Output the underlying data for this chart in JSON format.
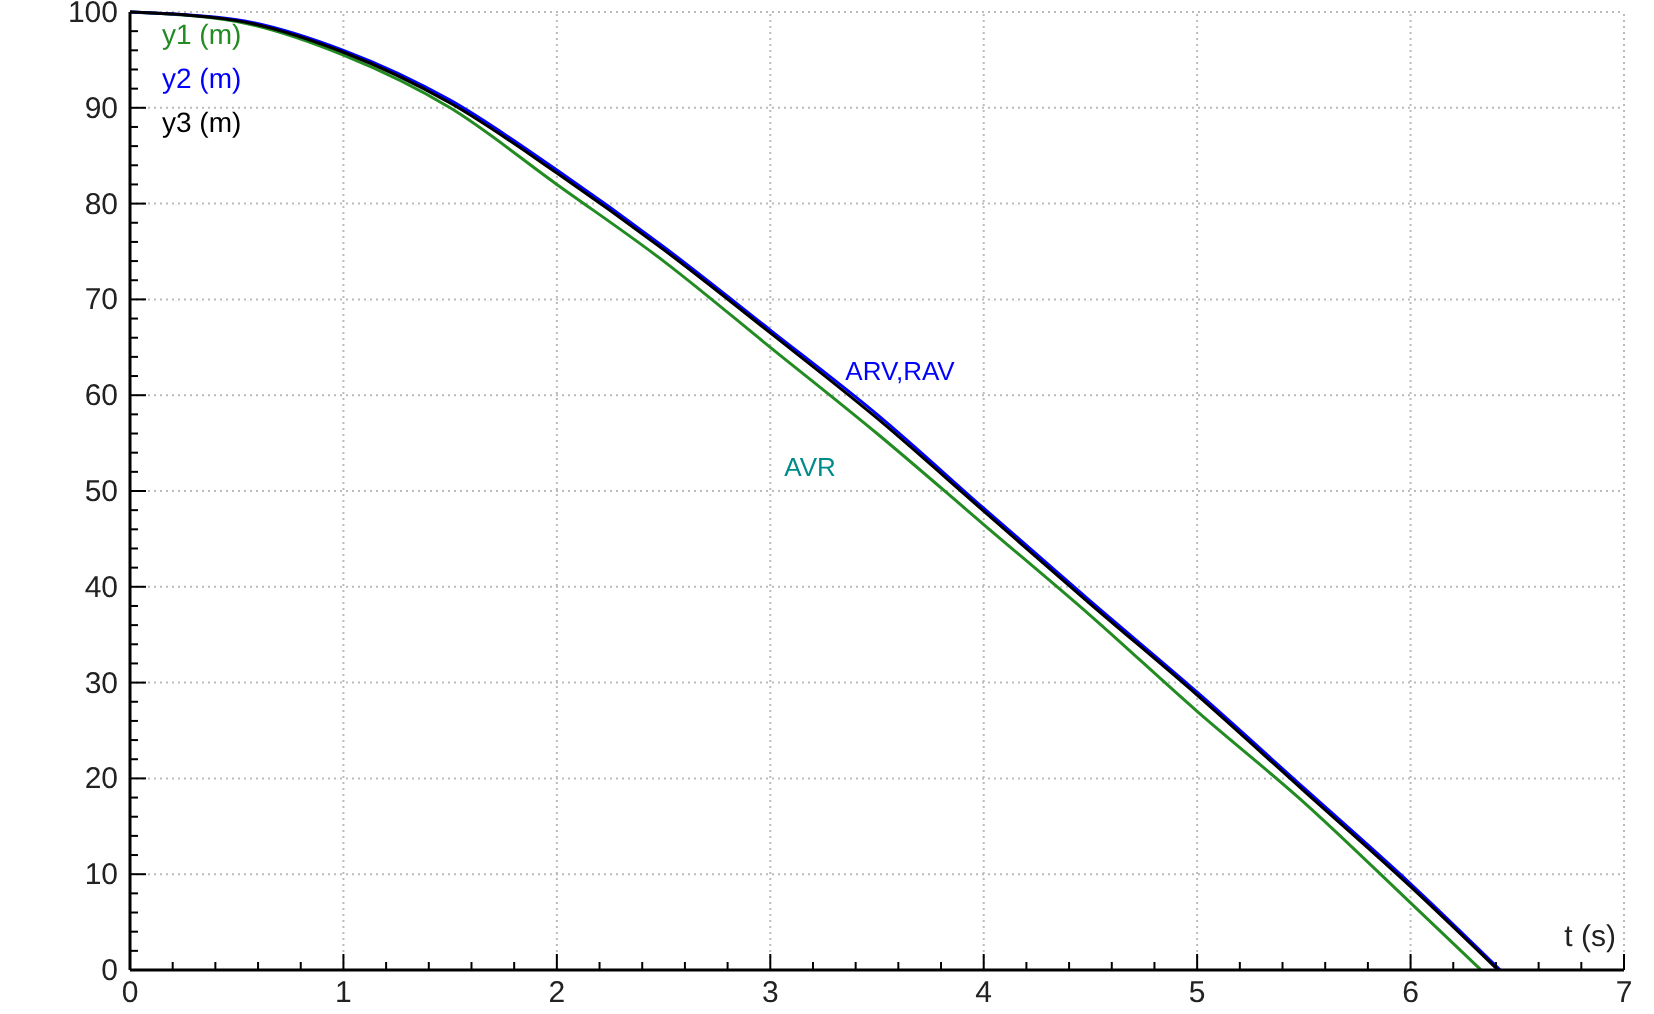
{
  "chart_data": {
    "type": "line",
    "xlabel": "t (s)",
    "xlim": [
      0,
      7
    ],
    "xticks": [
      0,
      1,
      2,
      3,
      4,
      5,
      6,
      7
    ],
    "ylim": [
      0,
      100
    ],
    "yticks": [
      0,
      10,
      20,
      30,
      40,
      50,
      60,
      70,
      80,
      90,
      100
    ],
    "grid": true,
    "legend": "top left",
    "marker": "none",
    "line_style": "solid",
    "annotations": [
      "ARV,RAV",
      "AVR"
    ],
    "series": [
      {
        "name": "y1 (m)",
        "color": "#228b22",
        "x": [
          0,
          0.5,
          1,
          1.5,
          2,
          2.5,
          3,
          3.5,
          4,
          4.5,
          5,
          5.5,
          6,
          6.33
        ],
        "values": [
          100,
          99,
          95.5,
          90,
          82,
          74,
          65,
          56,
          46.5,
          37,
          27,
          17.5,
          7,
          0
        ]
      },
      {
        "name": "y2 (m)",
        "color": "#0000ff",
        "x": [
          0,
          0.5,
          1,
          1.5,
          2,
          2.5,
          3,
          3.5,
          4,
          4.5,
          5,
          5.5,
          6,
          6.42
        ],
        "values": [
          100,
          99.2,
          96,
          90.8,
          83.5,
          75.5,
          66.8,
          58,
          48.2,
          38.5,
          29,
          19,
          9,
          0
        ]
      },
      {
        "name": "y3 (m)",
        "color": "#000000",
        "x": [
          0,
          0.5,
          1,
          1.5,
          2,
          2.5,
          3,
          3.5,
          4,
          4.5,
          5,
          5.5,
          6,
          6.41
        ],
        "values": [
          100,
          99.1,
          95.8,
          90.5,
          83.2,
          75.2,
          66.5,
          57.6,
          47.9,
          38.2,
          28.7,
          18.7,
          8.7,
          0
        ]
      }
    ]
  }
}
